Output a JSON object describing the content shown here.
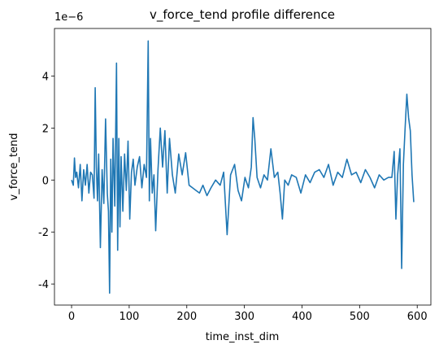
{
  "chart_data": {
    "type": "line",
    "title": "v_force_tend profile difference",
    "x_label": "time_inst_dim",
    "y_label": "v_force_tend",
    "y_offset_label": "1e−6",
    "x": [
      0,
      3,
      5,
      7,
      9,
      12,
      15,
      18,
      21,
      24,
      27,
      30,
      33,
      36,
      39,
      41,
      43,
      45,
      47,
      50,
      53,
      56,
      59,
      62,
      64,
      66,
      68,
      70,
      72,
      75,
      78,
      80,
      82,
      84,
      86,
      89,
      92,
      95,
      98,
      101,
      104,
      107,
      110,
      114,
      118,
      122,
      126,
      130,
      133,
      135,
      137,
      140,
      143,
      146,
      150,
      154,
      158,
      162,
      166,
      170,
      175,
      180,
      186,
      192,
      198,
      204,
      210,
      216,
      222,
      228,
      235,
      242,
      250,
      258,
      264,
      270,
      276,
      283,
      289,
      295,
      301,
      307,
      312,
      315,
      318,
      322,
      328,
      334,
      340,
      346,
      352,
      358,
      362,
      366,
      370,
      376,
      382,
      390,
      398,
      406,
      414,
      422,
      430,
      438,
      446,
      454,
      462,
      470,
      478,
      486,
      494,
      502,
      510,
      518,
      526,
      534,
      542,
      550,
      556,
      560,
      563,
      566,
      570,
      573,
      576,
      579,
      582,
      585,
      588,
      591,
      594
    ],
    "series": [
      {
        "name": "v_force_tend",
        "color": "#1f77b4",
        "values": [
          0,
          -0.2,
          0.85,
          0.1,
          0.3,
          -0.3,
          0.6,
          -0.8,
          0.4,
          -0.2,
          0.6,
          -0.5,
          0.3,
          0.2,
          -0.7,
          3.55,
          0.5,
          -0.8,
          1.0,
          -2.6,
          0.4,
          -0.9,
          2.35,
          -0.5,
          -1.2,
          -4.35,
          0.8,
          -2.0,
          1.6,
          -1.0,
          4.5,
          -2.7,
          1.6,
          -1.8,
          0.9,
          -1.2,
          1.0,
          -0.4,
          1.5,
          -1.5,
          0.3,
          0.8,
          -0.2,
          0.5,
          0.9,
          -0.3,
          0.6,
          0.1,
          5.35,
          -0.8,
          1.6,
          -0.5,
          0.2,
          -1.95,
          0.4,
          2.0,
          0.5,
          1.9,
          -0.5,
          1.6,
          0.2,
          -0.5,
          1.0,
          0.2,
          1.05,
          -0.2,
          -0.3,
          -0.4,
          -0.5,
          -0.2,
          -0.6,
          -0.3,
          0.0,
          -0.2,
          0.3,
          -2.1,
          0.2,
          0.6,
          -0.4,
          -0.8,
          0.1,
          -0.3,
          0.5,
          2.4,
          1.6,
          0.1,
          -0.3,
          0.2,
          0.0,
          1.2,
          0.1,
          0.3,
          -0.5,
          -1.5,
          0.0,
          -0.2,
          0.2,
          0.1,
          -0.5,
          0.2,
          -0.1,
          0.3,
          0.4,
          0.1,
          0.6,
          -0.2,
          0.3,
          0.1,
          0.8,
          0.2,
          0.3,
          -0.1,
          0.4,
          0.1,
          -0.3,
          0.2,
          0.0,
          0.1,
          0.1,
          1.1,
          -1.5,
          0.2,
          1.2,
          -3.4,
          0.6,
          2.0,
          3.3,
          2.4,
          1.9,
          0.2,
          -0.85
        ]
      }
    ],
    "xlim": [
      -29.7,
      623.7
    ],
    "xticks": [
      0,
      100,
      200,
      300,
      400,
      500,
      600
    ],
    "ylim": [
      -4.81,
      5.83
    ],
    "yticks": [
      -4,
      -2,
      0,
      2,
      4
    ]
  }
}
